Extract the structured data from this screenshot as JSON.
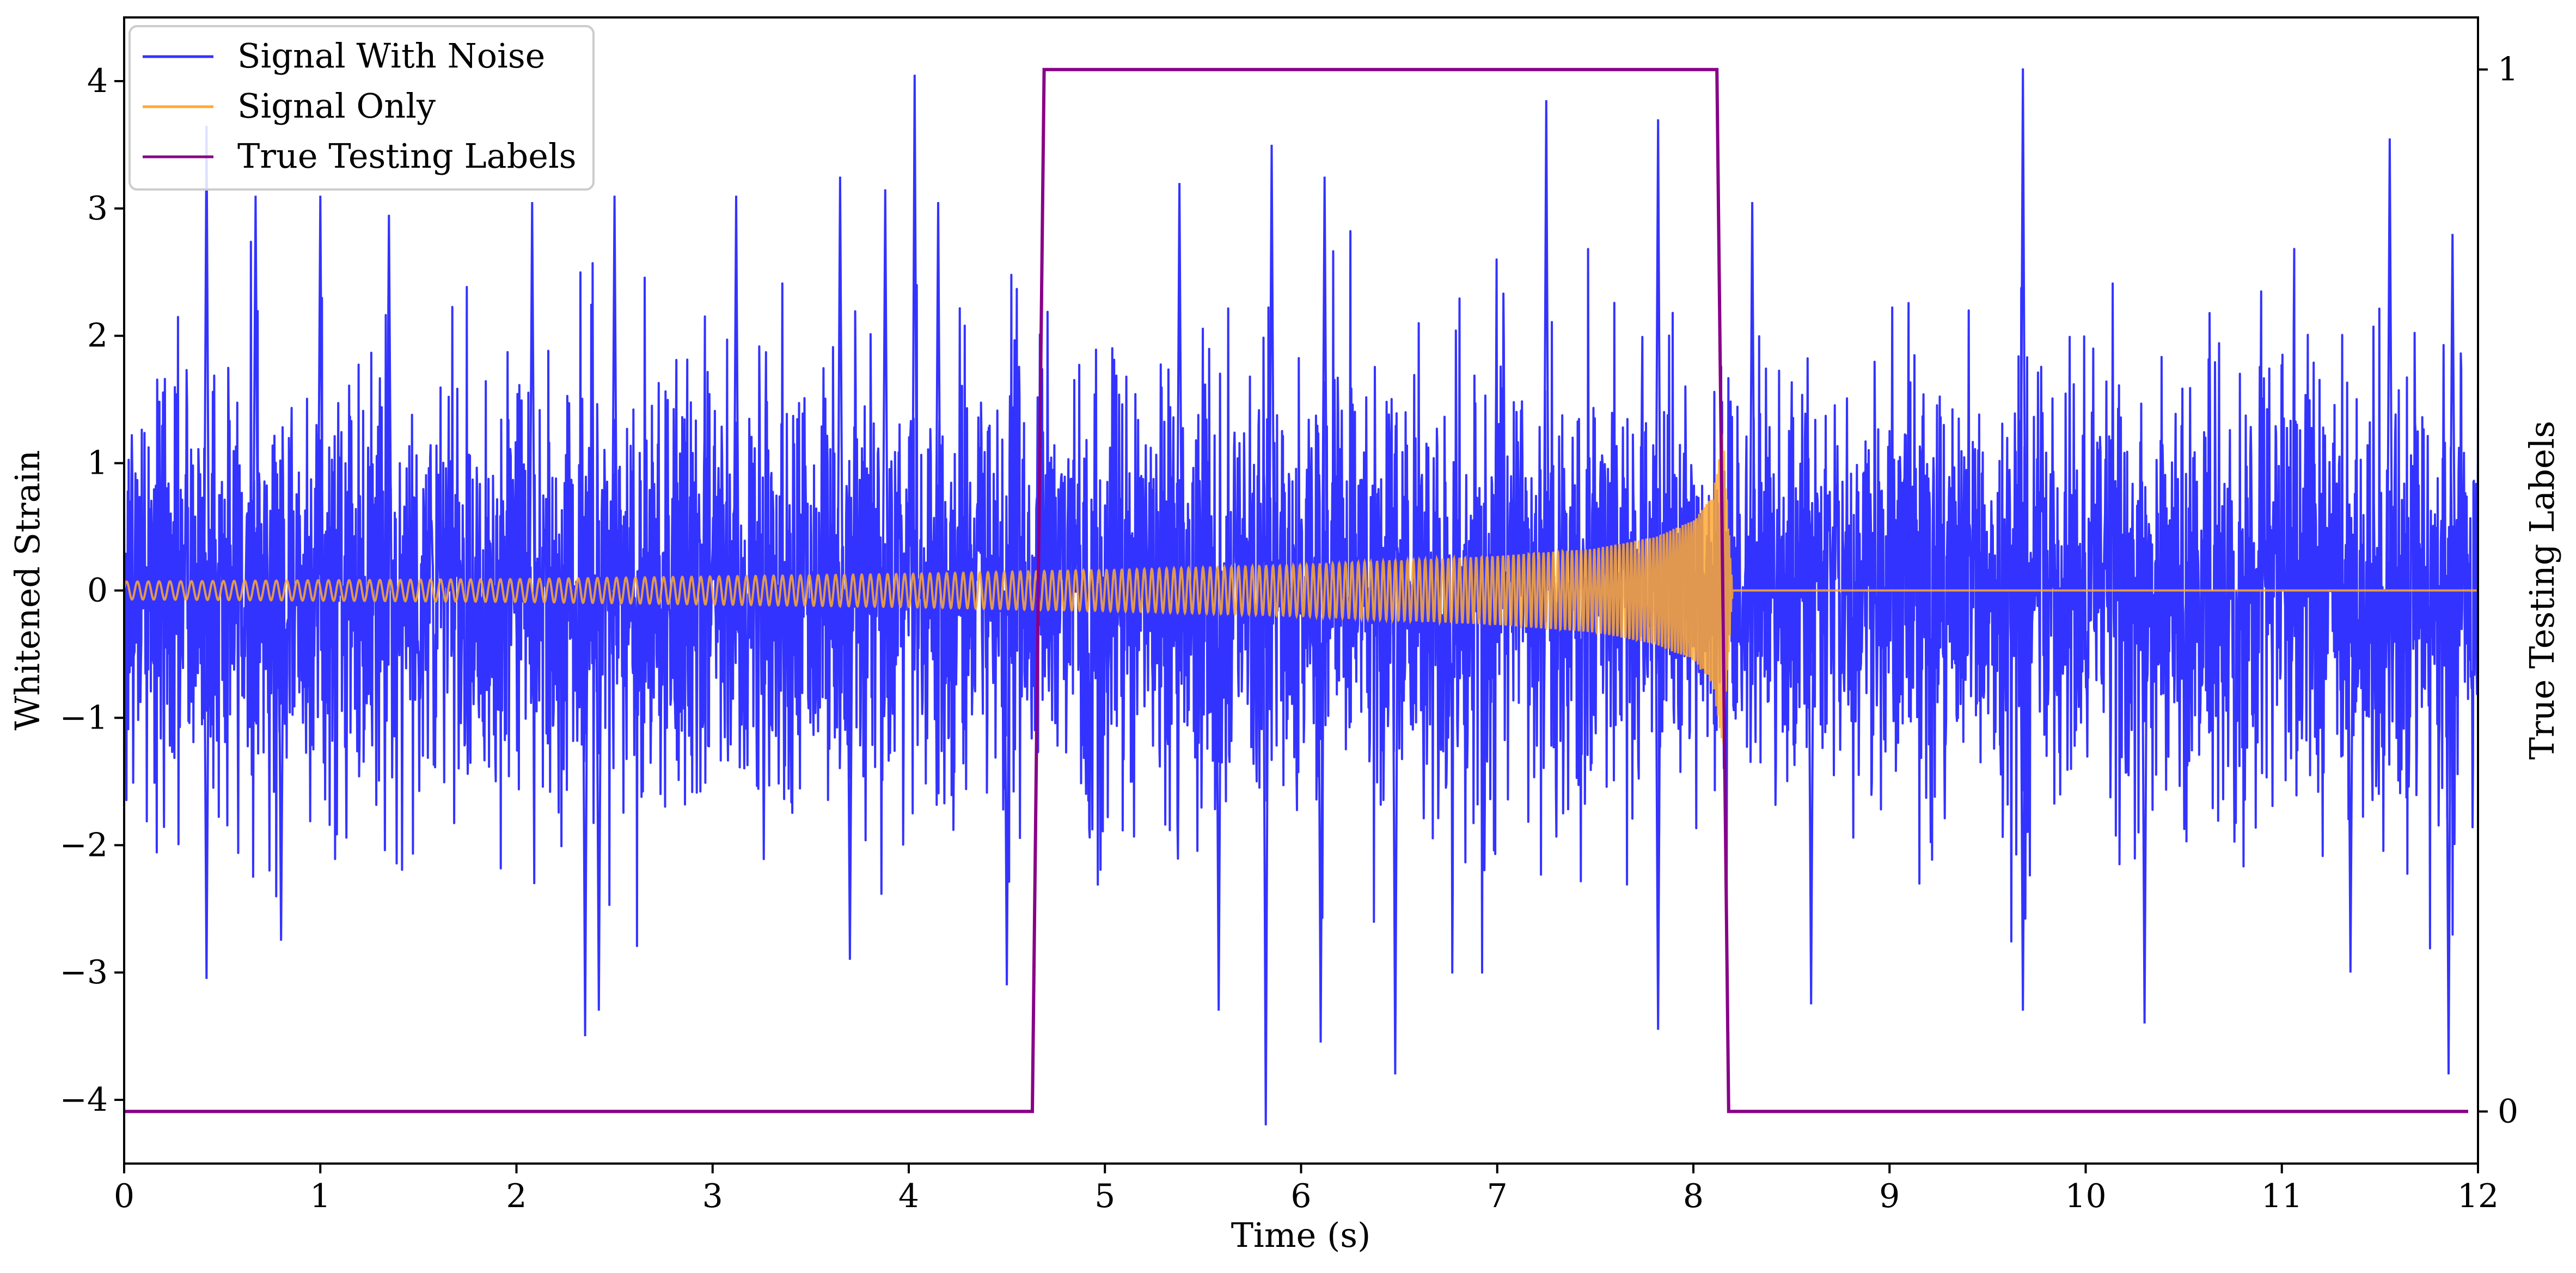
{
  "chart_data": {
    "type": "line",
    "xlabel": "Time (s)",
    "ylabel": "Whitened Strain",
    "y2label": "True Testing Labels",
    "xlim": [
      0,
      12
    ],
    "ylim": [
      -4.5,
      4.5
    ],
    "y2lim": [
      -0.05,
      1.05
    ],
    "x_ticks": [
      0,
      1,
      2,
      3,
      4,
      5,
      6,
      7,
      8,
      9,
      10,
      11,
      12
    ],
    "x_tick_labels": [
      "0",
      "1",
      "2",
      "3",
      "4",
      "5",
      "6",
      "7",
      "8",
      "9",
      "10",
      "11",
      "12"
    ],
    "y_ticks": [
      4,
      3,
      2,
      1,
      0,
      -1,
      -2,
      -3,
      -4
    ],
    "y_tick_labels": [
      "4",
      "3",
      "2",
      "1",
      "0",
      "−1",
      "−2",
      "−3",
      "−4"
    ],
    "y2_ticks": [
      1,
      0
    ],
    "y2_tick_labels": [
      "1",
      "0"
    ],
    "legend_position": "top-left",
    "grid": false,
    "series": [
      {
        "name": "Signal With Noise",
        "color": "#3333ff",
        "axis": "left",
        "description_noise_std": 0.85,
        "peaks": [
          {
            "x": 0.42,
            "y": 3.65
          },
          {
            "x": 0.67,
            "y": 3.1
          },
          {
            "x": 1.0,
            "y": 3.1
          },
          {
            "x": 1.35,
            "y": 2.95
          },
          {
            "x": 2.08,
            "y": 3.05
          },
          {
            "x": 2.5,
            "y": 3.1
          },
          {
            "x": 3.12,
            "y": 3.1
          },
          {
            "x": 3.65,
            "y": 3.25
          },
          {
            "x": 3.88,
            "y": 3.15
          },
          {
            "x": 4.03,
            "y": 4.05
          },
          {
            "x": 4.15,
            "y": 3.05
          },
          {
            "x": 5.38,
            "y": 3.2
          },
          {
            "x": 5.85,
            "y": 3.5
          },
          {
            "x": 6.12,
            "y": 3.25
          },
          {
            "x": 7.25,
            "y": 3.85
          },
          {
            "x": 7.82,
            "y": 3.7
          },
          {
            "x": 8.3,
            "y": 3.05
          },
          {
            "x": 9.68,
            "y": 4.1
          },
          {
            "x": 11.55,
            "y": 3.55
          },
          {
            "x": 11.87,
            "y": 2.8
          }
        ],
        "troughs": [
          {
            "x": 0.42,
            "y": -3.05
          },
          {
            "x": 0.8,
            "y": -2.75
          },
          {
            "x": 2.35,
            "y": -3.5
          },
          {
            "x": 2.42,
            "y": -3.3
          },
          {
            "x": 3.7,
            "y": -2.9
          },
          {
            "x": 4.5,
            "y": -3.1
          },
          {
            "x": 5.58,
            "y": -3.3
          },
          {
            "x": 5.82,
            "y": -4.2
          },
          {
            "x": 6.1,
            "y": -3.55
          },
          {
            "x": 6.48,
            "y": -3.8
          },
          {
            "x": 7.82,
            "y": -3.45
          },
          {
            "x": 8.6,
            "y": -3.25
          },
          {
            "x": 9.68,
            "y": -3.3
          },
          {
            "x": 10.3,
            "y": -3.4
          },
          {
            "x": 11.35,
            "y": -3.0
          },
          {
            "x": 11.85,
            "y": -3.8
          }
        ]
      },
      {
        "name": "Signal Only",
        "color": "#ffaa33",
        "axis": "left",
        "waveform": "chirp",
        "amplitude_envelope": [
          [
            0.0,
            0.07
          ],
          [
            1.0,
            0.08
          ],
          [
            2.0,
            0.09
          ],
          [
            3.0,
            0.11
          ],
          [
            4.0,
            0.13
          ],
          [
            4.6,
            0.15
          ],
          [
            5.0,
            0.16
          ],
          [
            6.0,
            0.2
          ],
          [
            7.0,
            0.27
          ],
          [
            7.5,
            0.33
          ],
          [
            7.8,
            0.42
          ],
          [
            8.0,
            0.55
          ],
          [
            8.1,
            0.75
          ],
          [
            8.15,
            1.25
          ],
          [
            8.2,
            0.0
          ],
          [
            12.0,
            0.0
          ]
        ]
      },
      {
        "name": "True Testing Labels",
        "color": "#880088",
        "axis": "right",
        "points": [
          [
            0.0,
            0
          ],
          [
            4.63,
            0
          ],
          [
            4.69,
            1
          ],
          [
            8.12,
            1
          ],
          [
            8.18,
            0
          ],
          [
            11.95,
            0
          ]
        ]
      }
    ]
  }
}
